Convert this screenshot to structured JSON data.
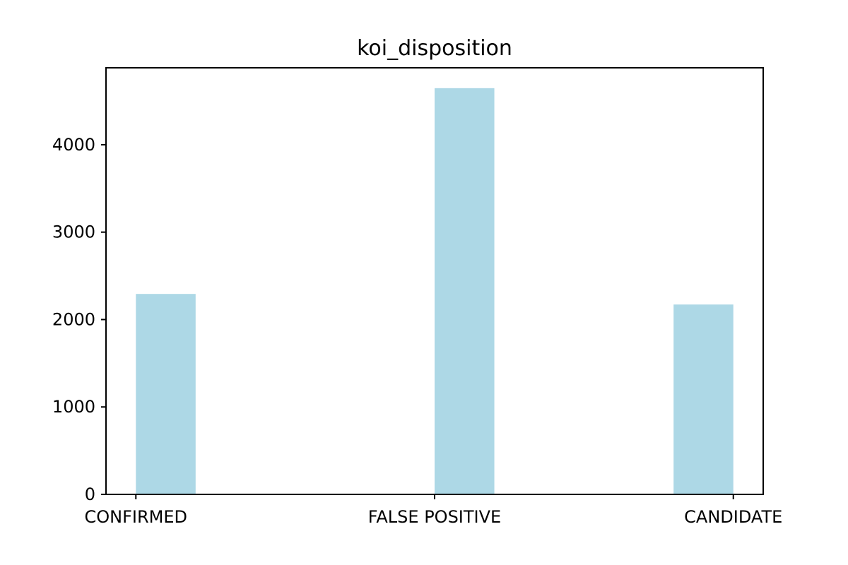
{
  "chart_data": {
    "type": "bar",
    "title": "koi_disposition",
    "xlabel": "",
    "ylabel": "",
    "categories": [
      "CONFIRMED",
      "FALSE POSITIVE",
      "CANDIDATE"
    ],
    "bin_ranges": [
      [
        0,
        0.2
      ],
      [
        1.0,
        1.2
      ],
      [
        1.8,
        2.0
      ]
    ],
    "values": [
      2293,
      4647,
      2172
    ],
    "xlim": [
      -0.1,
      2.1
    ],
    "ylim": [
      0,
      4880
    ],
    "yticks": [
      0,
      1000,
      2000,
      3000,
      4000
    ],
    "xticks": [
      0,
      1,
      2
    ],
    "grid": false,
    "legend": "none",
    "bar_color": "#add8e6"
  }
}
